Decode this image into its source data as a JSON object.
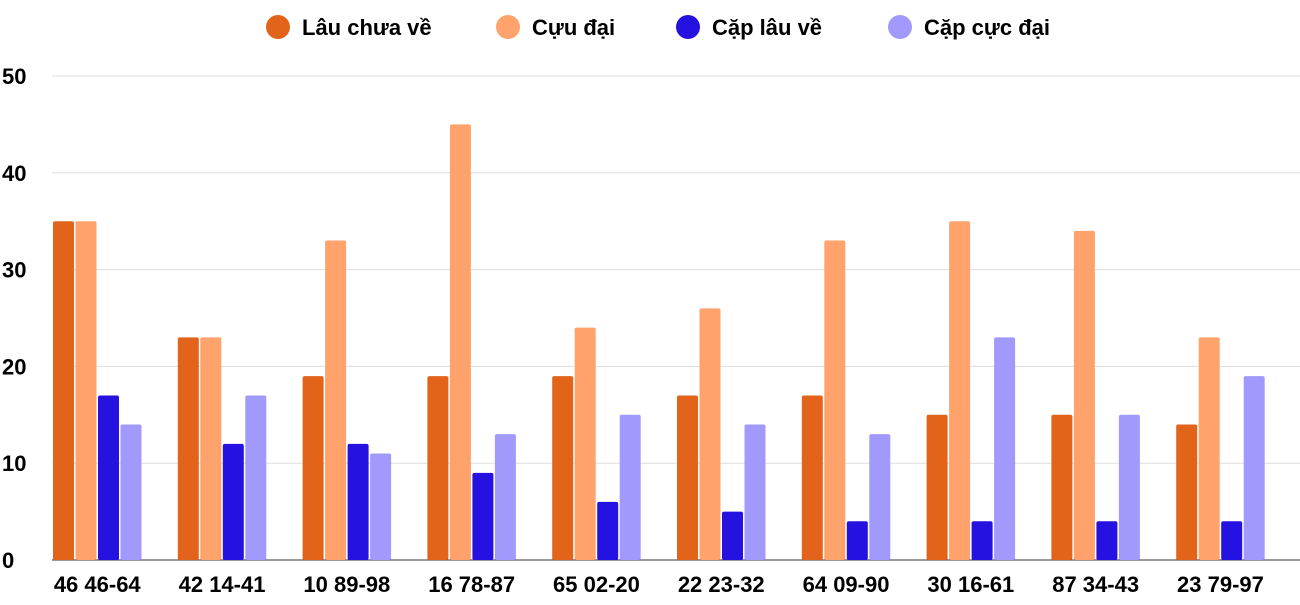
{
  "chart_data": {
    "type": "bar",
    "title": "",
    "xlabel": "",
    "ylabel": "",
    "ylim": [
      0,
      50
    ],
    "yticks": [
      0,
      10,
      20,
      30,
      40,
      50
    ],
    "grid": true,
    "legend_position": "top",
    "categories": [
      "46 46-64",
      "42 14-41",
      "10 89-98",
      "16 78-87",
      "65 02-20",
      "22 23-32",
      "64 09-90",
      "30 16-61",
      "87 34-43",
      "23 79-97"
    ],
    "series": [
      {
        "name": "Lâu chưa về",
        "color": "#e2631a",
        "values": [
          35,
          23,
          19,
          19,
          19,
          17,
          17,
          15,
          15,
          14
        ]
      },
      {
        "name": "Cựu đại",
        "color": "#ffa26b",
        "values": [
          35,
          23,
          33,
          45,
          24,
          26,
          33,
          35,
          34,
          23
        ]
      },
      {
        "name": "Cặp lâu về",
        "color": "#2612e0",
        "values": [
          17,
          12,
          12,
          9,
          6,
          5,
          4,
          4,
          4,
          4
        ]
      },
      {
        "name": "Cặp cực đại",
        "color": "#a199fb",
        "values": [
          14,
          17,
          11,
          13,
          15,
          14,
          13,
          23,
          15,
          19
        ]
      }
    ]
  }
}
